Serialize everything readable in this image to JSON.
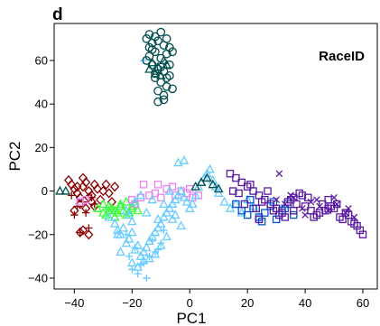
{
  "figure": {
    "panel_label": "d"
  },
  "chart_data": {
    "type": "scatter",
    "title": "",
    "xlabel": "PC1",
    "ylabel": "PC2",
    "xlim": [
      -47,
      65
    ],
    "ylim": [
      -45,
      77
    ],
    "xticks": [
      -40,
      -20,
      0,
      20,
      40,
      60
    ],
    "yticks": [
      -40,
      -20,
      0,
      20,
      40,
      60
    ],
    "annotation": "RaceID",
    "grid": false,
    "series": [
      {
        "color": "#8b0000",
        "marker": "diamond",
        "x": [
          -42,
          -41,
          -40,
          -39,
          -38,
          -37,
          -36,
          -35,
          -34,
          -33,
          -32,
          -31,
          -30,
          -38,
          -36,
          -34,
          -39,
          -37,
          -35,
          -33,
          -29,
          -28,
          -27,
          -26,
          -40,
          -37,
          -35,
          -38
        ],
        "y": [
          5,
          3,
          1,
          -1,
          -3,
          2,
          4,
          0,
          -2,
          3,
          1,
          -4,
          0,
          -6,
          -8,
          -5,
          2,
          6,
          -3,
          -7,
          3,
          -1,
          -5,
          2,
          -9,
          -18,
          -20,
          -19
        ]
      },
      {
        "color": "#8b0000",
        "marker": "plus",
        "x": [
          -41,
          -39,
          -37,
          -36,
          -34,
          -40,
          -38,
          -35,
          -33
        ],
        "y": [
          -2,
          -7,
          -5,
          -10,
          -3,
          -11,
          -19,
          -17,
          -6
        ]
      },
      {
        "color": "#33ff33",
        "marker": "triangle",
        "x": [
          -32,
          -30,
          -29,
          -28,
          -27,
          -26,
          -25,
          -24,
          -23,
          -22,
          -21,
          -20,
          -19,
          -18,
          -30,
          -28,
          -26,
          -24,
          -22,
          -20
        ],
        "y": [
          -8,
          -10,
          -11,
          -9,
          -8,
          -12,
          -10,
          -7,
          -9,
          -11,
          -10,
          -8,
          -6,
          -9,
          -6,
          -7,
          -9,
          -6,
          -5,
          -7
        ]
      },
      {
        "color": "#ee82ee",
        "marker": "square",
        "x": [
          -38,
          -36,
          -20,
          -17,
          -14,
          -12,
          -10,
          -8,
          -5,
          -3,
          -1,
          1,
          3,
          -16,
          -11,
          -6,
          0,
          -19
        ],
        "y": [
          -5,
          -4,
          -4,
          -3,
          -2,
          -1,
          -3,
          1,
          -2,
          0,
          -1,
          -3,
          -2,
          3,
          3,
          2,
          1,
          -6
        ]
      },
      {
        "color": "#66ccff",
        "marker": "triangle",
        "x": [
          -28,
          -26,
          -25,
          -24,
          -23,
          -22,
          -21,
          -20,
          -19,
          -18,
          -17,
          -16,
          -15,
          -14,
          -13,
          -12,
          -11,
          -10,
          -9,
          -8,
          -7,
          -6,
          -5,
          -4,
          -3,
          -2,
          -1,
          0,
          1,
          2,
          3,
          4,
          5,
          6,
          7,
          8,
          9,
          10,
          -24,
          -20,
          -18,
          -16,
          -14,
          -12,
          -10,
          -8,
          -6,
          -20,
          -22,
          -19,
          -17,
          -15,
          -11,
          -9,
          -5,
          -3,
          -25,
          -21,
          -13,
          -7,
          12,
          14,
          16,
          18,
          20,
          22,
          24,
          -2,
          -4
        ],
        "y": [
          -12,
          -15,
          -18,
          -20,
          -17,
          -24,
          -22,
          -19,
          -27,
          -25,
          -30,
          -28,
          -26,
          -23,
          -21,
          -19,
          -17,
          -15,
          -12,
          -10,
          -8,
          -6,
          -4,
          -2,
          0,
          -3,
          -5,
          -8,
          -6,
          -2,
          2,
          4,
          6,
          8,
          10,
          5,
          2,
          -1,
          -28,
          -33,
          -35,
          -32,
          -31,
          -29,
          -25,
          -21,
          -13,
          -14,
          -9,
          -5,
          -2,
          -10,
          -13,
          -6,
          -11,
          -16,
          -20,
          -11,
          -4,
          0,
          -5,
          -8,
          -6,
          -10,
          -4,
          -7,
          -12,
          14,
          13
        ]
      },
      {
        "color": "#66ccff",
        "marker": "plus",
        "x": [
          -22,
          -19,
          -16,
          -14,
          -12,
          -10,
          -18,
          -20,
          -15,
          -13,
          -9,
          -21,
          -17,
          -11,
          -16
        ],
        "y": [
          -20,
          -26,
          -33,
          -30,
          -28,
          -24,
          -38,
          -36,
          -40,
          -23,
          -18,
          -30,
          -34,
          -27,
          60
        ]
      },
      {
        "color": "#0055cc",
        "marker": "square",
        "x": [
          16,
          18,
          20,
          22,
          24,
          26,
          28,
          30,
          32,
          34,
          36,
          21,
          25,
          29,
          33
        ],
        "y": [
          -6,
          -9,
          -11,
          -8,
          -12,
          -10,
          -7,
          -13,
          -9,
          -6,
          -11,
          -4,
          -14,
          -5,
          -8
        ]
      },
      {
        "color": "#5a1aa0",
        "marker": "square",
        "x": [
          14,
          16,
          18,
          20,
          22,
          24,
          26,
          28,
          30,
          32,
          34,
          36,
          38,
          40,
          42,
          44,
          46,
          48,
          50,
          52,
          54,
          56,
          58,
          60,
          17,
          21,
          25,
          29,
          33,
          37,
          41,
          45,
          49,
          53,
          57,
          19,
          23,
          27,
          31,
          35,
          39,
          43,
          47,
          51,
          55,
          59,
          15,
          24,
          36,
          48
        ],
        "y": [
          8,
          6,
          4,
          2,
          0,
          -2,
          -4,
          -6,
          -8,
          -10,
          -5,
          -3,
          -1,
          -7,
          -9,
          -11,
          -6,
          -4,
          -8,
          -12,
          -10,
          -14,
          -16,
          -20,
          -1,
          3,
          -5,
          -9,
          -12,
          -6,
          -3,
          -10,
          -7,
          -13,
          -15,
          -6,
          -8,
          0,
          -11,
          -4,
          -2,
          -12,
          -9,
          -6,
          -11,
          -18,
          0,
          -13,
          -9,
          -8
        ]
      },
      {
        "color": "#5a1aa0",
        "marker": "cross",
        "x": [
          30,
          33,
          36,
          39,
          42,
          45,
          48,
          51,
          54,
          57,
          31,
          35,
          40,
          44,
          50,
          55
        ],
        "y": [
          -4,
          -6,
          -3,
          -8,
          -5,
          -7,
          -9,
          -6,
          -10,
          -12,
          8,
          -2,
          -11,
          -4,
          -3,
          -8
        ]
      },
      {
        "color": "#004d4d",
        "marker": "circle",
        "x": [
          -15,
          -14,
          -13,
          -12,
          -11,
          -10,
          -9,
          -8,
          -7,
          -6,
          -14,
          -12,
          -10,
          -8,
          -13,
          -11,
          -9,
          -7,
          -12,
          -10,
          -8,
          -6,
          -11,
          -9,
          -13,
          -15,
          -7,
          -8,
          -10,
          -12,
          -14,
          -9,
          -11
        ],
        "y": [
          70,
          72,
          68,
          71,
          69,
          73,
          67,
          70,
          66,
          64,
          62,
          64,
          61,
          63,
          58,
          56,
          55,
          53,
          52,
          50,
          48,
          47,
          46,
          44,
          65,
          60,
          58,
          52,
          57,
          54,
          66,
          42,
          41
        ]
      },
      {
        "color": "#004d4d",
        "marker": "triangle",
        "x": [
          -14,
          -12,
          -10,
          -8,
          -13,
          -11,
          -9,
          2,
          4,
          6,
          8,
          10,
          -45,
          -43
        ],
        "y": [
          56,
          54,
          53,
          58,
          59,
          57,
          60,
          2,
          4,
          6,
          3,
          1,
          0,
          0
        ]
      }
    ]
  }
}
